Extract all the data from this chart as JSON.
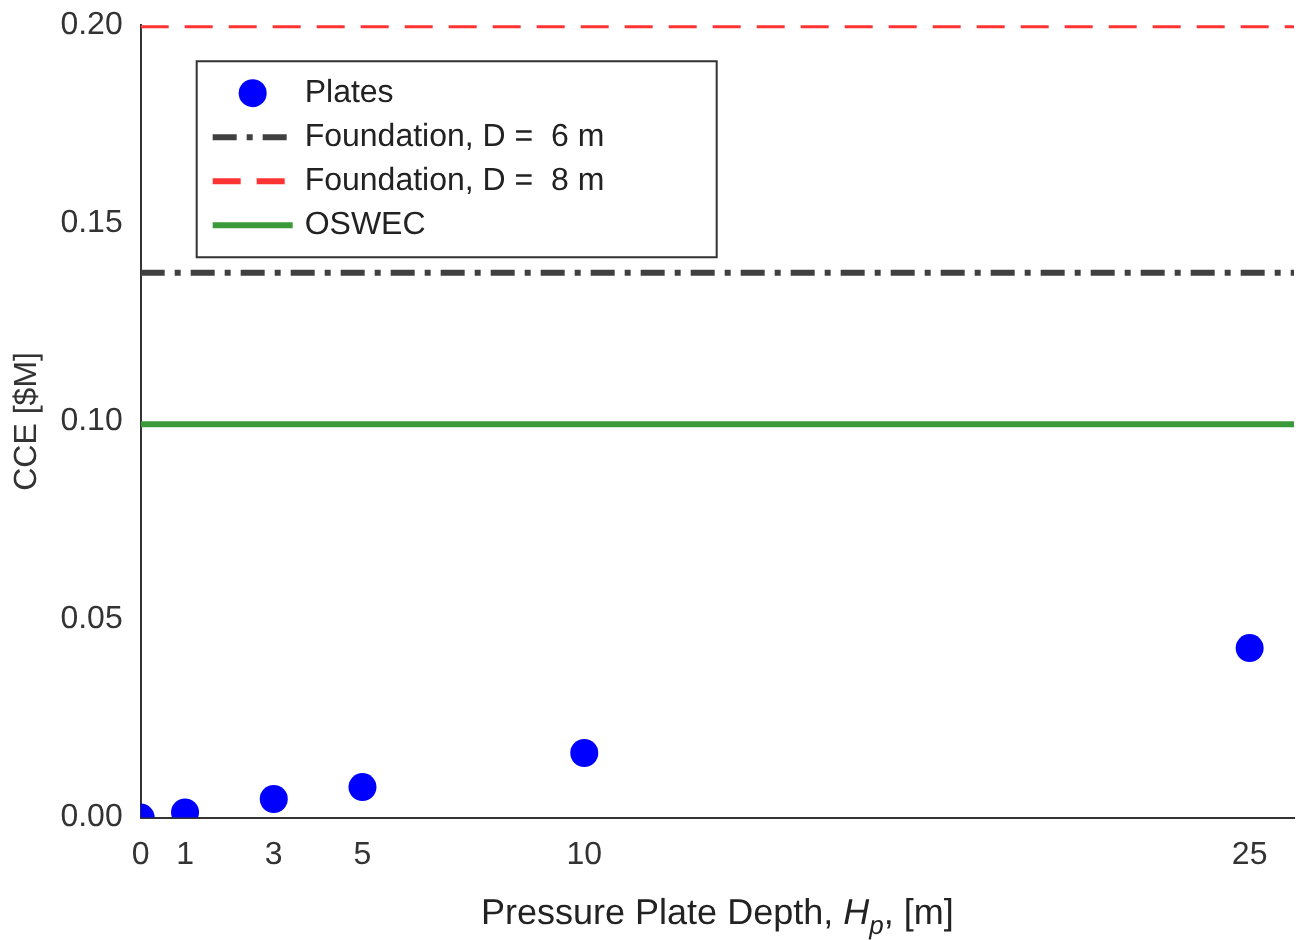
{
  "chart_data": {
    "type": "scatter",
    "xlabel": "Pressure Plate Depth, H$_{p}$, [m]",
    "ylabel": "CCE [$M]",
    "xlim": [
      0,
      26
    ],
    "xticks": [
      0,
      1,
      3,
      5,
      10,
      25
    ],
    "ylim": [
      0,
      0.2
    ],
    "yticks": [
      {
        "value": 0,
        "label": "0.00"
      },
      {
        "value": 0.05,
        "label": "0.05"
      },
      {
        "value": 0.1,
        "label": "0.10"
      },
      {
        "value": 0.15,
        "label": "0.15"
      },
      {
        "value": 0.2,
        "label": "0.20"
      }
    ],
    "grid": false,
    "legend": "top left",
    "series": [
      {
        "name": "Plates",
        "marker": "circle",
        "color": "#0000ff",
        "x": [
          0,
          1,
          3,
          5,
          10,
          25
        ],
        "values": [
          0,
          0.0013,
          0.0047,
          0.0077,
          0.0163,
          0.0428
        ]
      },
      {
        "name": "Foundation, D =  6 m",
        "type": "line",
        "line_style": "dashdot",
        "color": "#404040",
        "x": [
          0,
          26
        ],
        "values": [
          0.1375,
          0.1375
        ]
      },
      {
        "name": "Foundation, D =  8 m",
        "type": "line",
        "line_style": "dashed",
        "color": "#ff3333",
        "x": [
          0,
          26
        ],
        "values": [
          0.2,
          0.2
        ]
      },
      {
        "name": "OSWEC",
        "type": "line",
        "line_style": "solid",
        "color": "#3a9a3a",
        "x": [
          0,
          26
        ],
        "values": [
          0.0993,
          0.0993
        ]
      }
    ]
  }
}
